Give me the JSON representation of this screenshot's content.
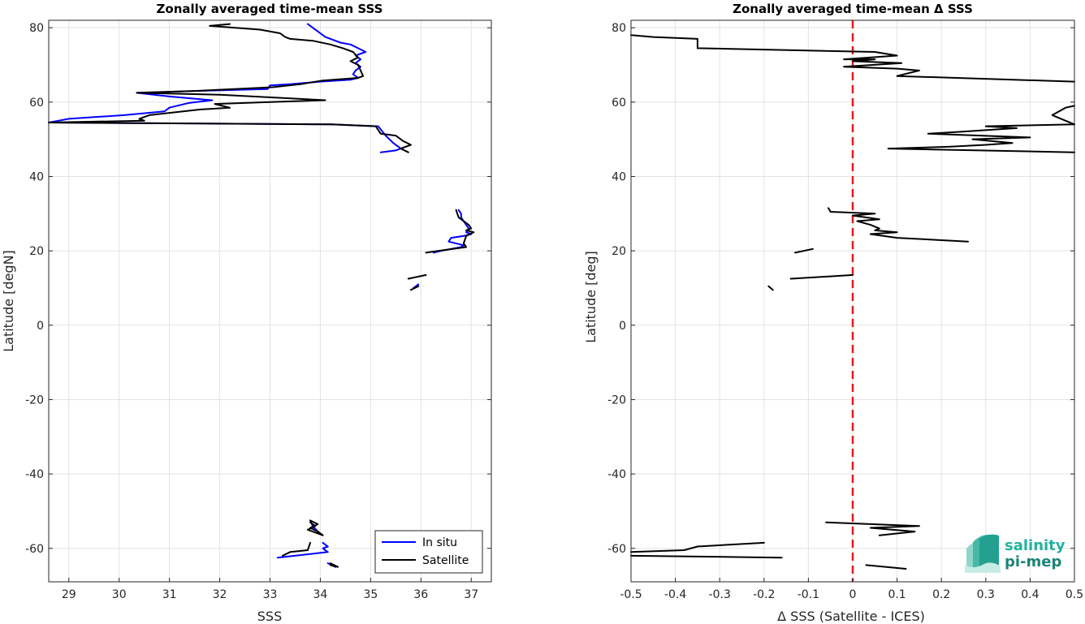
{
  "chart_data": [
    {
      "type": "line",
      "title": "Zonally averaged time-mean SSS",
      "xlabel": "SSS",
      "ylabel": "Latitude [degN]",
      "xlim": [
        28.6,
        37.4
      ],
      "ylim": [
        -69,
        82
      ],
      "xticks": [
        "29",
        "30",
        "31",
        "32",
        "33",
        "34",
        "35",
        "36",
        "37"
      ],
      "yticks": [
        "80",
        "60",
        "40",
        "20",
        "0",
        "-20",
        "-40",
        "-60"
      ],
      "grid": true,
      "legend_position": "bottom-right",
      "series": [
        {
          "name": "In situ",
          "color": "#0000ff",
          "segments": [
            [
              [
                33.75,
                81
              ],
              [
                33.95,
                79
              ],
              [
                34.05,
                78
              ],
              [
                34.1,
                77.5
              ],
              [
                34.4,
                76
              ],
              [
                34.6,
                75.5
              ],
              [
                34.75,
                74.5
              ],
              [
                34.9,
                73.5
              ],
              [
                34.7,
                72.5
              ],
              [
                34.8,
                71.5
              ],
              [
                34.7,
                70.5
              ],
              [
                34.8,
                69.5
              ],
              [
                34.7,
                68.5
              ],
              [
                34.65,
                67.5
              ],
              [
                34.75,
                66.5
              ],
              [
                34.6,
                66
              ],
              [
                34.0,
                65.5
              ],
              [
                33.4,
                64.8
              ],
              [
                33.0,
                64.5
              ],
              [
                32.95,
                63.5
              ],
              [
                31.5,
                63
              ],
              [
                30.35,
                62.5
              ],
              [
                31.0,
                61.5
              ],
              [
                31.85,
                60.5
              ],
              [
                31.4,
                59.8
              ],
              [
                31.0,
                58.5
              ],
              [
                30.9,
                57.5
              ],
              [
                30.1,
                56.5
              ],
              [
                29.0,
                55.5
              ],
              [
                28.8,
                55
              ],
              [
                28.6,
                54.5
              ],
              [
                34.2,
                54
              ],
              [
                35.15,
                53.5
              ],
              [
                35.3,
                51
              ],
              [
                35.45,
                49
              ],
              [
                35.6,
                47.5
              ],
              [
                35.5,
                47
              ],
              [
                35.2,
                46.5
              ]
            ],
            [
              [
                36.75,
                31
              ],
              [
                36.8,
                30
              ],
              [
                36.8,
                29
              ],
              [
                36.85,
                28
              ],
              [
                36.9,
                27
              ],
              [
                36.95,
                26
              ],
              [
                36.9,
                25
              ],
              [
                37.0,
                24.5
              ],
              [
                36.85,
                24
              ],
              [
                36.6,
                23.5
              ],
              [
                36.55,
                22.5
              ],
              [
                36.85,
                21.5
              ],
              [
                36.8,
                21
              ],
              [
                36.4,
                20
              ],
              [
                36.25,
                19.5
              ]
            ],
            [
              [
                35.95,
                11
              ],
              [
                35.85,
                10
              ]
            ],
            [
              [
                33.8,
                -52.5
              ],
              [
                33.85,
                -54
              ],
              [
                33.95,
                -55.5
              ],
              [
                34.05,
                -56.5
              ]
            ],
            [
              [
                34.05,
                -58.5
              ],
              [
                34.15,
                -59.5
              ],
              [
                34.05,
                -60
              ],
              [
                34.15,
                -61
              ],
              [
                33.15,
                -62.5
              ]
            ],
            [
              [
                34.15,
                -64
              ],
              [
                34.3,
                -65
              ]
            ]
          ]
        },
        {
          "name": "Satellite",
          "color": "#000000",
          "segments": [
            [
              [
                32.2,
                81
              ],
              [
                31.8,
                80.5
              ],
              [
                32.8,
                79.5
              ],
              [
                33.2,
                78.5
              ],
              [
                33.3,
                77.5
              ],
              [
                33.4,
                77
              ],
              [
                33.85,
                76.5
              ],
              [
                34.2,
                75.5
              ],
              [
                34.45,
                74.5
              ],
              [
                34.65,
                73.5
              ],
              [
                34.75,
                72
              ],
              [
                34.6,
                71
              ],
              [
                34.75,
                70
              ],
              [
                34.8,
                68.5
              ],
              [
                34.85,
                67
              ],
              [
                34.75,
                66.5
              ],
              [
                34.05,
                65.8
              ],
              [
                33.6,
                64.8
              ],
              [
                33.05,
                64
              ],
              [
                31.5,
                63
              ],
              [
                30.35,
                62.5
              ],
              [
                32.0,
                62
              ],
              [
                34.1,
                60.5
              ],
              [
                33.0,
                60
              ],
              [
                31.9,
                59.5
              ],
              [
                32.2,
                58.5
              ],
              [
                31.6,
                58
              ],
              [
                30.6,
                56.5
              ],
              [
                30.4,
                55.5
              ],
              [
                30.5,
                55
              ],
              [
                28.6,
                54.5
              ],
              [
                34.25,
                54
              ],
              [
                35.1,
                53.5
              ],
              [
                35.2,
                51.5
              ],
              [
                35.5,
                51
              ],
              [
                35.65,
                49.5
              ],
              [
                35.8,
                48.5
              ],
              [
                35.6,
                47.5
              ],
              [
                35.75,
                46.5
              ]
            ],
            [
              [
                36.7,
                31
              ],
              [
                36.75,
                29
              ],
              [
                36.85,
                28
              ],
              [
                36.95,
                27
              ],
              [
                37.0,
                26
              ],
              [
                36.9,
                25.5
              ],
              [
                37.05,
                25
              ],
              [
                36.9,
                24
              ],
              [
                36.85,
                22
              ],
              [
                36.9,
                21
              ],
              [
                36.35,
                20
              ],
              [
                36.1,
                19.5
              ]
            ],
            [
              [
                36.1,
                13.5
              ],
              [
                35.75,
                12.5
              ]
            ],
            [
              [
                35.95,
                10.5
              ],
              [
                35.8,
                9.5
              ]
            ],
            [
              [
                33.8,
                -52.5
              ],
              [
                33.95,
                -53.5
              ],
              [
                33.8,
                -54.5
              ],
              [
                33.95,
                -55.5
              ],
              [
                34.05,
                -56.5
              ],
              [
                33.75,
                -55
              ],
              [
                33.9,
                -54
              ],
              [
                33.8,
                -53
              ]
            ],
            [
              [
                33.8,
                -58.5
              ],
              [
                33.75,
                -60.5
              ],
              [
                33.4,
                -61
              ],
              [
                33.25,
                -62
              ]
            ],
            [
              [
                34.2,
                -64
              ],
              [
                34.35,
                -65
              ],
              [
                34.2,
                -64.5
              ]
            ]
          ]
        }
      ]
    },
    {
      "type": "line",
      "title": "Zonally averaged time-mean Δ SSS",
      "xlabel": "Δ SSS (Satellite - ICES)",
      "ylabel": "Latitude [deg]",
      "xlim": [
        -0.5,
        0.5
      ],
      "ylim": [
        -69,
        82
      ],
      "xticks": [
        "-0.5",
        "-0.4",
        "-0.3",
        "-0.2",
        "-0.1",
        "0",
        "0.1",
        "0.2",
        "0.3",
        "0.4",
        "0.5"
      ],
      "yticks": [
        "80",
        "60",
        "40",
        "20",
        "0",
        "-20",
        "-40",
        "-60"
      ],
      "grid": true,
      "reference_line": {
        "x": 0,
        "color": "#e41a1c",
        "style": "dashed"
      },
      "series": [
        {
          "color": "#000000",
          "segments": [
            [
              [
                -0.5,
                78
              ],
              [
                -0.45,
                77.5
              ],
              [
                -0.35,
                77
              ],
              [
                -0.35,
                74.5
              ],
              [
                0.05,
                73.5
              ],
              [
                0.1,
                72.5
              ],
              [
                -0.02,
                71.5
              ],
              [
                0.05,
                71.5
              ],
              [
                0.0,
                71
              ],
              [
                0.11,
                70.5
              ],
              [
                -0.02,
                69.5
              ],
              [
                0.1,
                69
              ],
              [
                0.15,
                68.5
              ],
              [
                0.1,
                67
              ],
              [
                0.5,
                65.5
              ]
            ],
            [
              [
                0.5,
                59
              ],
              [
                0.48,
                58.5
              ],
              [
                0.45,
                56.5
              ],
              [
                0.5,
                54
              ]
            ],
            [
              [
                0.5,
                54
              ],
              [
                0.3,
                53.5
              ],
              [
                0.37,
                53
              ],
              [
                0.24,
                52
              ],
              [
                0.17,
                51.5
              ],
              [
                0.4,
                50.5
              ],
              [
                0.27,
                50
              ],
              [
                0.36,
                49
              ],
              [
                0.3,
                48.5
              ],
              [
                0.22,
                48
              ],
              [
                0.08,
                47.5
              ],
              [
                0.5,
                46.5
              ]
            ],
            [
              [
                -0.055,
                31.5
              ],
              [
                -0.05,
                30.5
              ],
              [
                0.05,
                30
              ],
              [
                0.0,
                29.5
              ],
              [
                0.06,
                28.5
              ],
              [
                0.01,
                28
              ],
              [
                0.04,
                27
              ],
              [
                0.06,
                26
              ],
              [
                0.05,
                25.5
              ],
              [
                0.1,
                25
              ],
              [
                0.04,
                24.5
              ],
              [
                0.1,
                23.5
              ],
              [
                0.26,
                22.5
              ]
            ],
            [
              [
                -0.13,
                19.5
              ],
              [
                -0.09,
                20.5
              ]
            ],
            [
              [
                -0.14,
                12.5
              ],
              [
                0.0,
                13.5
              ]
            ],
            [
              [
                -0.19,
                10.5
              ],
              [
                -0.18,
                9.5
              ]
            ],
            [
              [
                -0.06,
                -53
              ],
              [
                0.15,
                -54
              ],
              [
                0.04,
                -54.5
              ],
              [
                0.14,
                -55.5
              ],
              [
                0.06,
                -56.5
              ]
            ],
            [
              [
                -0.5,
                -61
              ],
              [
                -0.38,
                -60.5
              ],
              [
                -0.35,
                -59.5
              ],
              [
                -0.2,
                -58.5
              ]
            ],
            [
              [
                -0.5,
                -62
              ],
              [
                -0.16,
                -62.5
              ]
            ],
            [
              [
                0.03,
                -64.5
              ],
              [
                0.12,
                -65.5
              ]
            ]
          ]
        }
      ]
    }
  ],
  "legend": {
    "items": [
      {
        "label": "In situ",
        "color": "#0000ff"
      },
      {
        "label": "Satellite",
        "color": "#000000"
      }
    ]
  },
  "logo": {
    "line1": "salinity",
    "line2": "pi-mep",
    "color1": "#23b2a0",
    "color2": "#1a8578"
  }
}
